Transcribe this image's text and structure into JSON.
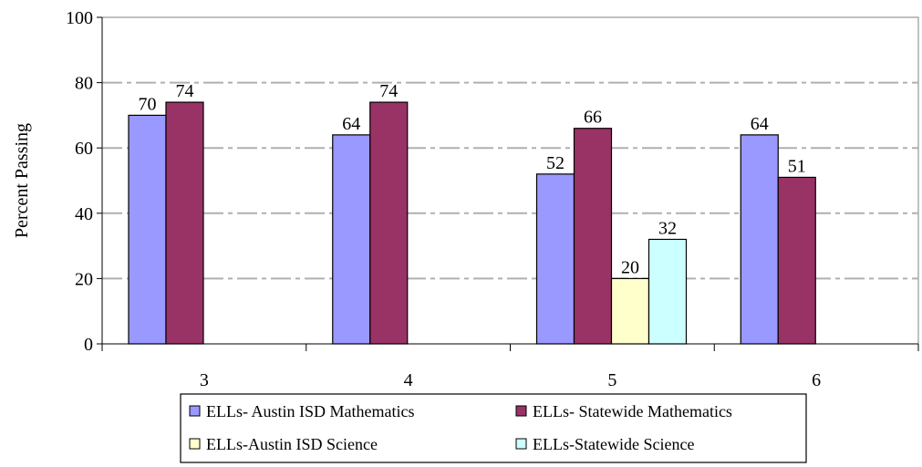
{
  "chart_data": {
    "type": "bar",
    "categories": [
      "3",
      "4",
      "5",
      "6"
    ],
    "series": [
      {
        "name": "ELLs- Austin ISD Mathematics",
        "color": "#9999ff",
        "values": [
          70,
          64,
          52,
          64
        ]
      },
      {
        "name": "ELLs- Statewide Mathematics",
        "color": "#993366",
        "values": [
          74,
          74,
          66,
          51
        ]
      },
      {
        "name": "ELLs-Austin ISD Science",
        "color": "#ffffcc",
        "values": [
          null,
          null,
          20,
          null
        ]
      },
      {
        "name": "ELLs-Statewide Science",
        "color": "#ccffff",
        "values": [
          null,
          null,
          32,
          null
        ]
      }
    ],
    "xlabel": "",
    "ylabel": "Percent Passing",
    "ylim": [
      0,
      100
    ],
    "yticks": [
      0,
      20,
      40,
      60,
      80,
      100
    ],
    "grid": true,
    "legend_position": "bottom"
  }
}
